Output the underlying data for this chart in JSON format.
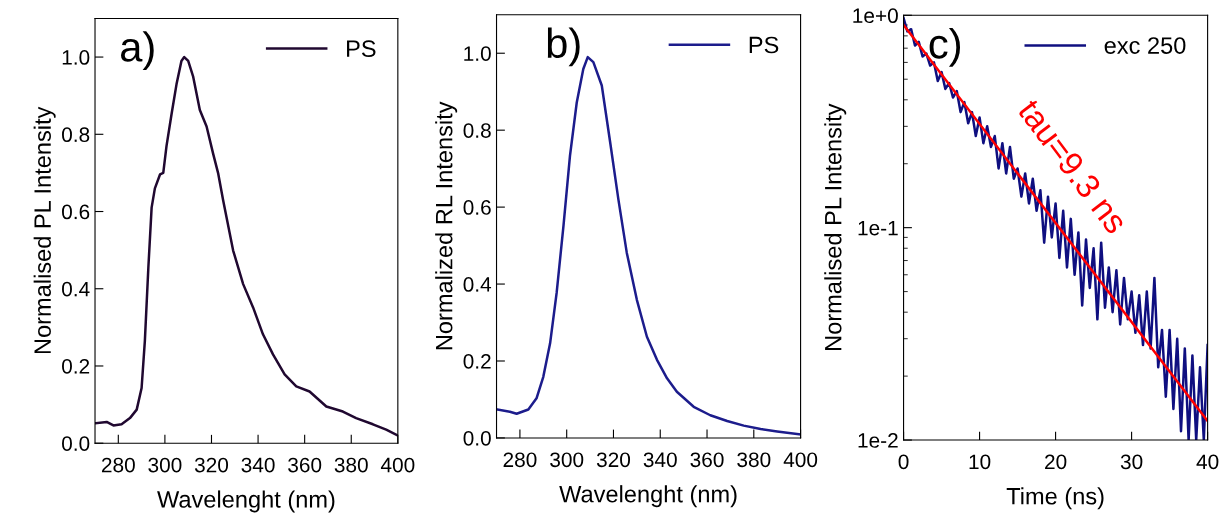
{
  "chart_data": [
    {
      "type": "line",
      "xlabel": "Wavelenght (nm)",
      "ylabel": "Normalised PL Intensity",
      "annotations": [
        "a)"
      ],
      "legend": "top right",
      "grid": false,
      "xlim": [
        270,
        400
      ],
      "xticks": [
        280,
        300,
        320,
        340,
        360,
        380,
        400
      ],
      "ylim": [
        0,
        1.1
      ],
      "yticks": [
        {
          "value": 0,
          "label": "0.0"
        },
        {
          "value": 0.2,
          "label": "0.2"
        },
        {
          "value": 0.4,
          "label": "0.4"
        },
        {
          "value": 0.6,
          "label": "0.6"
        },
        {
          "value": 0.8,
          "label": "0.8"
        },
        {
          "value": 1,
          "label": "1.0"
        }
      ],
      "series": [
        {
          "name": "PS",
          "color": "#200830",
          "x": [
            270.4,
            275,
            277.9,
            281.4,
            285,
            287.9,
            290,
            291.4,
            292.9,
            294.3,
            295.7,
            297.9,
            299.3,
            300.7,
            302.9,
            305,
            307.1,
            308.3,
            310,
            312.1,
            315,
            317.9,
            320.7,
            322.9,
            325,
            329.3,
            333.6,
            337.9,
            342.1,
            346.4,
            351.4,
            356.4,
            362.1,
            369.3,
            376.4,
            382.1,
            389.3,
            395,
            400
          ],
          "values": [
            0.052,
            0.055,
            0.046,
            0.049,
            0.065,
            0.087,
            0.143,
            0.265,
            0.455,
            0.61,
            0.66,
            0.696,
            0.7,
            0.77,
            0.854,
            0.93,
            0.99,
            1.0,
            0.99,
            0.95,
            0.863,
            0.82,
            0.75,
            0.698,
            0.629,
            0.499,
            0.412,
            0.351,
            0.282,
            0.23,
            0.178,
            0.147,
            0.134,
            0.095,
            0.082,
            0.065,
            0.049,
            0.035,
            0.02
          ]
        }
      ]
    },
    {
      "type": "line",
      "xlabel": "Wavelenght (nm)",
      "ylabel": "Normalized RL Intensity",
      "annotations": [
        "b)"
      ],
      "legend": "top right",
      "grid": false,
      "xlim": [
        270,
        400
      ],
      "xticks": [
        280,
        300,
        320,
        340,
        360,
        380,
        400
      ],
      "ylim": [
        0,
        1.1
      ],
      "yticks": [
        {
          "value": 0,
          "label": "0.0"
        },
        {
          "value": 0.2,
          "label": "0.2"
        },
        {
          "value": 0.4,
          "label": "0.4"
        },
        {
          "value": 0.6,
          "label": "0.6"
        },
        {
          "value": 0.8,
          "label": "0.8"
        },
        {
          "value": 1,
          "label": "1.0"
        }
      ],
      "series": [
        {
          "name": "PS",
          "color": "#1c1c8c",
          "x": [
            270.3,
            275.7,
            278.6,
            283.6,
            287.1,
            290,
            292.9,
            295.7,
            298.6,
            301.4,
            304.3,
            307.1,
            309,
            311.4,
            315,
            318.6,
            322.1,
            325.7,
            330,
            334.3,
            338.6,
            342.9,
            347.1,
            354.3,
            361.4,
            368.6,
            375.7,
            382.9,
            390,
            400
          ],
          "values": [
            0.074,
            0.068,
            0.063,
            0.074,
            0.103,
            0.159,
            0.246,
            0.377,
            0.55,
            0.733,
            0.872,
            0.959,
            0.99,
            0.977,
            0.916,
            0.768,
            0.62,
            0.481,
            0.359,
            0.263,
            0.203,
            0.155,
            0.12,
            0.081,
            0.059,
            0.044,
            0.032,
            0.023,
            0.017,
            0.009
          ]
        }
      ]
    },
    {
      "type": "line",
      "xlabel": "Time (ns)",
      "ylabel": "Normalised PL Intensity",
      "annotations": [
        "c)",
        "tau=9.3 ns"
      ],
      "legend": "top right",
      "grid": false,
      "log": "y",
      "xlim": [
        0,
        40
      ],
      "xticks": [
        0,
        10,
        20,
        30,
        40
      ],
      "ylim": [
        0.01,
        1
      ],
      "yticks": [
        {
          "value": 0.01,
          "label": "1e-2"
        },
        {
          "value": 0.1,
          "label": "1e-1"
        },
        {
          "value": 1,
          "label": "1e+0"
        }
      ],
      "series": [
        {
          "name": "exc 250",
          "color": "#0f0f80",
          "x": [
            0,
            0.5,
            1,
            1.5,
            2,
            2.5,
            3,
            3.5,
            4,
            4.5,
            5,
            5.5,
            6,
            6.5,
            7,
            7.5,
            8,
            8.5,
            9,
            9.5,
            10,
            10.5,
            11,
            11.5,
            12,
            12.5,
            13,
            13.5,
            14,
            14.5,
            15,
            15.5,
            16,
            16.5,
            17,
            17.5,
            18,
            18.5,
            19,
            19.5,
            20,
            20.5,
            21,
            21.5,
            22,
            22.5,
            23,
            23.5,
            24,
            24.5,
            25,
            25.5,
            26,
            26.5,
            27,
            27.5,
            28,
            28.5,
            29,
            29.5,
            30,
            30.5,
            31,
            31.5,
            32,
            32.5,
            33,
            33.5,
            34,
            34.5,
            35,
            35.5,
            36,
            36.5,
            37,
            37.5,
            38,
            38.5,
            39,
            39.5,
            40
          ],
          "values": [
            0.97,
            0.84,
            0.86,
            0.72,
            0.75,
            0.64,
            0.66,
            0.58,
            0.6,
            0.49,
            0.54,
            0.45,
            0.48,
            0.41,
            0.44,
            0.35,
            0.39,
            0.31,
            0.35,
            0.27,
            0.33,
            0.25,
            0.3,
            0.24,
            0.27,
            0.19,
            0.25,
            0.18,
            0.24,
            0.17,
            0.19,
            0.14,
            0.18,
            0.13,
            0.17,
            0.12,
            0.15,
            0.085,
            0.14,
            0.09,
            0.13,
            0.072,
            0.12,
            0.065,
            0.11,
            0.06,
            0.095,
            0.043,
            0.088,
            0.052,
            0.08,
            0.037,
            0.085,
            0.042,
            0.065,
            0.04,
            0.063,
            0.035,
            0.058,
            0.037,
            0.05,
            0.032,
            0.048,
            0.028,
            0.05,
            0.027,
            0.058,
            0.022,
            0.033,
            0.016,
            0.033,
            0.014,
            0.03,
            0.011,
            0.027,
            0.01,
            0.025,
            0.01,
            0.022,
            0.01,
            0.028
          ]
        },
        {
          "type": "line",
          "color": "#ff0000",
          "x": [
            0,
            40
          ],
          "values": [
            0.9,
            0.0123
          ]
        }
      ]
    }
  ]
}
